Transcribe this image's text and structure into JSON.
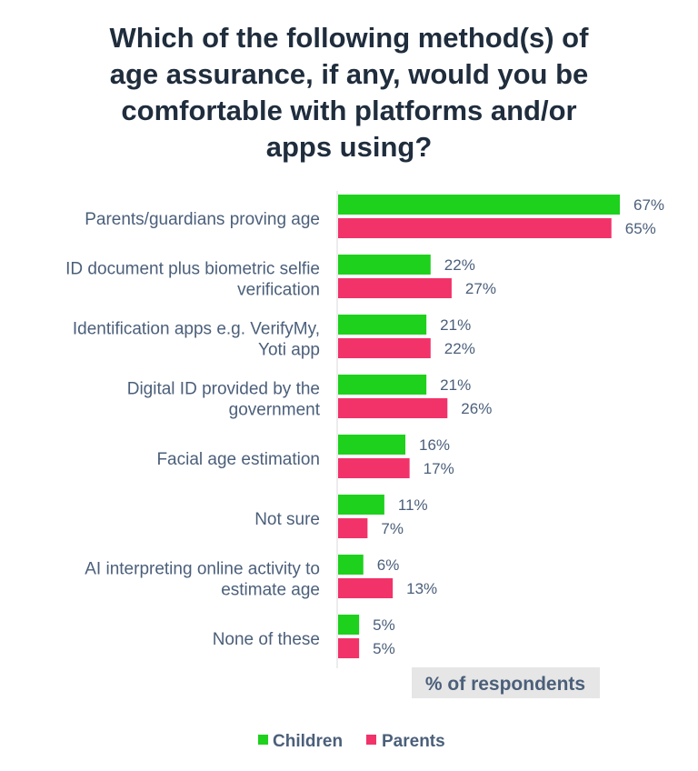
{
  "chart_data": {
    "type": "bar",
    "orientation": "horizontal",
    "title": "Which of the following method(s) of age assurance, if any, would you be comfortable with platforms and/or apps using?",
    "title_lines": [
      "Which of the following method(s) of",
      "age assurance, if any, would you be",
      "comfortable with platforms and/or",
      "apps using?"
    ],
    "categories": [
      [
        "Parents/guardians proving age"
      ],
      [
        "ID document plus biometric selfie",
        "verification"
      ],
      [
        "Identification apps e.g. VerifyMy,",
        "Yoti app"
      ],
      [
        "Digital ID provided by the",
        "government"
      ],
      [
        "Facial age estimation"
      ],
      [
        "Not sure"
      ],
      [
        "AI interpreting online activity to",
        "estimate age"
      ],
      [
        "None of these"
      ]
    ],
    "series": [
      {
        "name": "Children",
        "color": "#1dd11d",
        "values": [
          67,
          22,
          21,
          21,
          16,
          11,
          6,
          5
        ]
      },
      {
        "name": "Parents",
        "color": "#f1336a",
        "values": [
          65,
          27,
          22,
          26,
          17,
          7,
          13,
          5
        ]
      }
    ],
    "value_suffix": "%",
    "xlabel": "% of respondents",
    "xlim": [
      0,
      67
    ],
    "grid": false,
    "legend_position": "bottom"
  }
}
